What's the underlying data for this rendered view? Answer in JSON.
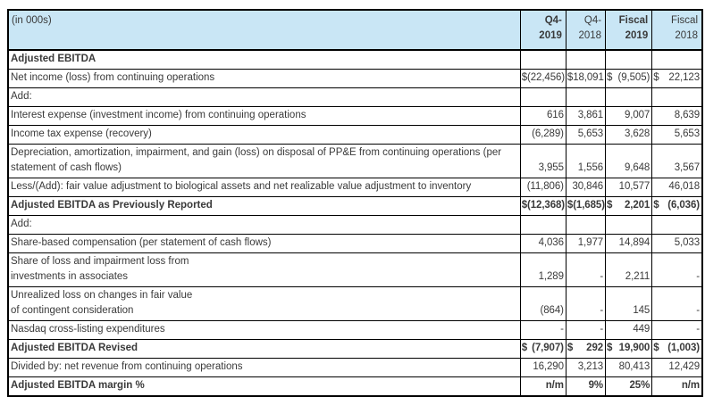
{
  "table": {
    "unit_label": "(in 000s)",
    "columns": [
      {
        "line1": "Q4-",
        "line2": "2019",
        "bold": true
      },
      {
        "line1": "Q4-",
        "line2": "2018",
        "bold": false
      },
      {
        "line1": "Fiscal",
        "line2": "2019",
        "bold": true
      },
      {
        "line1": "Fiscal",
        "line2": "2018",
        "bold": false
      }
    ],
    "rows": [
      {
        "label": "Adjusted EBITDA",
        "bold": true,
        "dollar": "",
        "values": [
          "",
          "",
          "",
          ""
        ]
      },
      {
        "label": "Net income (loss) from continuing operations",
        "bold": false,
        "dollar": "$",
        "values": [
          "(22,456)",
          "18,091",
          "(9,505)",
          "22,123"
        ]
      },
      {
        "label": "Add:",
        "bold": false,
        "dollar": "",
        "values": [
          "",
          "",
          "",
          ""
        ]
      },
      {
        "label": "Interest expense (investment income) from continuing operations",
        "bold": false,
        "dollar": "",
        "values": [
          "616",
          "3,861",
          "9,007",
          "8,639"
        ]
      },
      {
        "label": "Income tax expense (recovery)",
        "bold": false,
        "dollar": "",
        "values": [
          "(6,289)",
          "5,653",
          "3,628",
          "5,653"
        ]
      },
      {
        "label": "Depreciation, amortization, impairment, and gain (loss) on disposal of PP&E from continuing operations (per",
        "label2": "statement of cash flows)",
        "bold": false,
        "dollar": "",
        "values": [
          "3,955",
          "1,556",
          "9,648",
          "3,567"
        ]
      },
      {
        "label": "Less/(Add): fair value adjustment to biological assets and net realizable value adjustment to inventory",
        "bold": false,
        "dollar": "",
        "values": [
          "(11,806)",
          "30,846",
          "10,577",
          "46,018"
        ]
      },
      {
        "label": "Adjusted EBITDA as Previously Reported",
        "bold": true,
        "dollar": "$",
        "values": [
          "(12,368)",
          "(1,685)",
          "2,201",
          "(6,036)"
        ]
      },
      {
        "label": "Add:",
        "bold": false,
        "dollar": "",
        "values": [
          "",
          "",
          "",
          ""
        ]
      },
      {
        "label": "Share-based compensation (per statement of cash flows)",
        "bold": false,
        "dollar": "",
        "values": [
          "4,036",
          "1,977",
          "14,894",
          "5,033"
        ]
      },
      {
        "label": "Share of loss and impairment loss from",
        "label2": "investments in associates",
        "bold": false,
        "dollar": "",
        "values": [
          "1,289",
          "-",
          "2,211",
          "-"
        ]
      },
      {
        "label": "Unrealized loss on changes in fair value",
        "label2": "of contingent consideration",
        "bold": false,
        "dollar": "",
        "values": [
          "(864)",
          "-",
          "145",
          "-"
        ]
      },
      {
        "label": "Nasdaq cross-listing expenditures",
        "bold": false,
        "dollar": "",
        "values": [
          "-",
          "-",
          "449",
          "-"
        ]
      },
      {
        "label": "Adjusted EBITDA Revised",
        "bold": true,
        "dollar": "$",
        "values": [
          "(7,907)",
          "292",
          "19,900",
          "(1,003)"
        ]
      },
      {
        "label": "Divided by: net revenue from continuing operations",
        "bold": false,
        "dollar": "",
        "values": [
          "16,290",
          "3,213",
          "80,413",
          "12,429"
        ]
      },
      {
        "label": "Adjusted EBITDA margin %",
        "bold": true,
        "dollar": "",
        "values": [
          "n/m",
          "9%",
          "25%",
          "n/m"
        ]
      }
    ]
  },
  "colors": {
    "header_bg": "#c9e6f5",
    "border": "#000000",
    "text": "#3a3a3a"
  }
}
